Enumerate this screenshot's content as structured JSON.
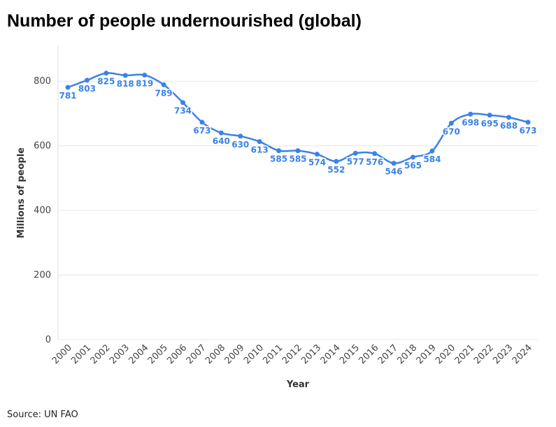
{
  "chart_data": {
    "type": "line",
    "title": "Number of people undernourished (global)",
    "x_label": "Year",
    "y_label": "Millions of people",
    "source": "Source: UN FAO",
    "categories": [
      "2000",
      "2001",
      "2002",
      "2003",
      "2004",
      "2005",
      "2006",
      "2007",
      "2008",
      "2009",
      "2010",
      "2011",
      "2012",
      "2013",
      "2014",
      "2015",
      "2016",
      "2017",
      "2018",
      "2019",
      "2020",
      "2021",
      "2022",
      "2023",
      "2024"
    ],
    "series": [
      {
        "name": "Undernourished",
        "color": "#3b82e6",
        "values": [
          781,
          803,
          825,
          818,
          819,
          789,
          734,
          673,
          640,
          630,
          613,
          585,
          585,
          574,
          552,
          577,
          576,
          546,
          565,
          584,
          670,
          698,
          695,
          688,
          673
        ]
      }
    ],
    "ylim": [
      0,
      900
    ],
    "yticks": [
      0,
      200,
      400,
      600,
      800
    ],
    "grid": true
  }
}
